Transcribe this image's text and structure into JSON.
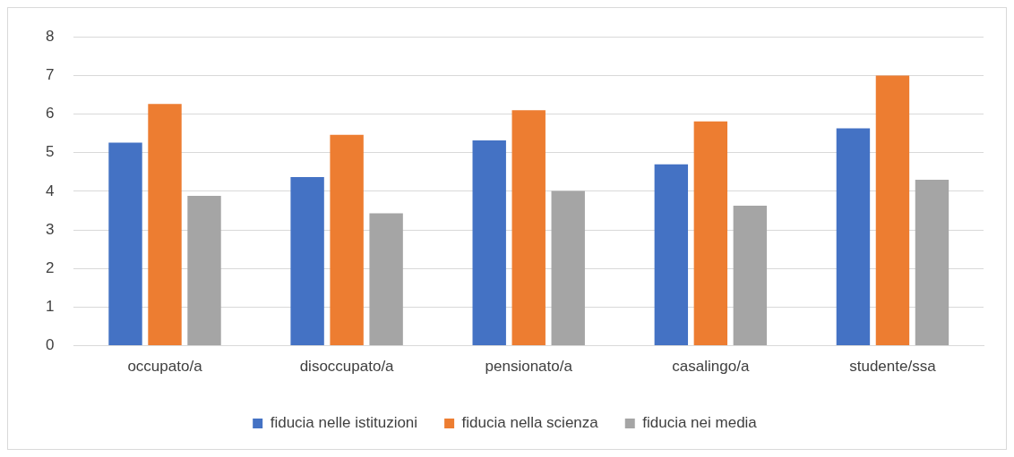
{
  "chart_data": {
    "type": "bar",
    "categories": [
      "occupato/a",
      "disoccupato/a",
      "pensionato/a",
      "casalingo/a",
      "studente/ssa"
    ],
    "series": [
      {
        "name": "fiducia nelle istituzioni",
        "color": "#4472c4",
        "values": [
          5.26,
          4.37,
          5.32,
          4.7,
          5.63
        ]
      },
      {
        "name": "fiducia nella scienza",
        "color": "#ed7d31",
        "values": [
          6.26,
          5.46,
          6.1,
          5.81,
          7.0
        ]
      },
      {
        "name": "fiducia nei media",
        "color": "#a5a5a5",
        "values": [
          3.88,
          3.43,
          4.01,
          3.63,
          4.3
        ]
      }
    ],
    "ylim": [
      0,
      8
    ],
    "yticks": [
      0,
      1,
      2,
      3,
      4,
      5,
      6,
      7,
      8
    ],
    "grid": "y",
    "legend": "bottom"
  }
}
